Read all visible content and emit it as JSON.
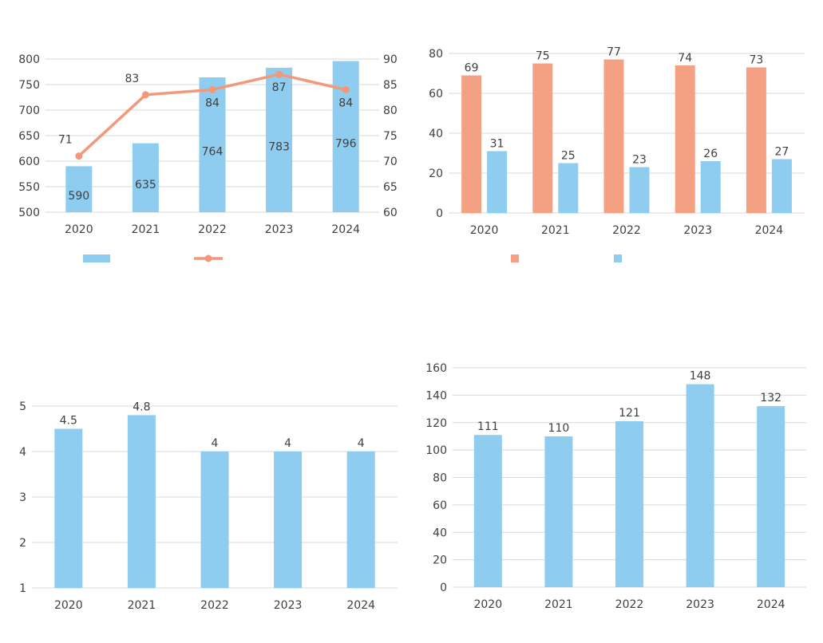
{
  "colors": {
    "blue": "#8ecdef",
    "orange": "#f4a183",
    "line": "#f2997a",
    "grid": "#d9d9d9",
    "text": "#404040"
  },
  "chart_data": [
    {
      "type": "bar+line",
      "title": "",
      "categories": [
        "2020",
        "2021",
        "2022",
        "2023",
        "2024"
      ],
      "series": [
        {
          "type": "bar",
          "axis": "left",
          "values": [
            590,
            635,
            764,
            783,
            796
          ],
          "color": "#8ecdef"
        },
        {
          "type": "line",
          "axis": "right",
          "values": [
            71,
            83,
            84,
            87,
            84
          ],
          "color": "#f2997a"
        }
      ],
      "ylim": [
        500,
        800
      ],
      "yticks": [
        500,
        550,
        600,
        650,
        700,
        750,
        800
      ],
      "y2lim": [
        60,
        90
      ],
      "y2ticks": [
        60,
        65,
        70,
        75,
        80,
        85,
        90
      ],
      "legend_position": "bottom",
      "grid": true
    },
    {
      "type": "bar",
      "title": "",
      "categories": [
        "2020",
        "2021",
        "2022",
        "2023",
        "2024"
      ],
      "series": [
        {
          "values": [
            69,
            75,
            77,
            74,
            73
          ],
          "color": "#f4a183"
        },
        {
          "values": [
            31,
            25,
            23,
            26,
            27
          ],
          "color": "#8ecdef"
        }
      ],
      "ylim": [
        0,
        80
      ],
      "yticks": [
        0,
        20,
        40,
        60,
        80
      ],
      "legend_position": "bottom",
      "grid": true
    },
    {
      "type": "bar",
      "title": "",
      "categories": [
        "2020",
        "2021",
        "2022",
        "2023",
        "2024"
      ],
      "values": [
        4.5,
        4.8,
        4,
        4,
        4
      ],
      "color": "#8ecdef",
      "ylim": [
        1,
        5
      ],
      "yticks": [
        1,
        2,
        3,
        4,
        5
      ],
      "grid": true
    },
    {
      "type": "bar",
      "title": "",
      "categories": [
        "2020",
        "2021",
        "2022",
        "2023",
        "2024"
      ],
      "values": [
        111,
        110,
        121,
        148,
        132
      ],
      "color": "#8ecdef",
      "ylim": [
        0,
        160
      ],
      "yticks": [
        0,
        20,
        40,
        60,
        80,
        100,
        120,
        140,
        160
      ],
      "grid": true
    }
  ]
}
